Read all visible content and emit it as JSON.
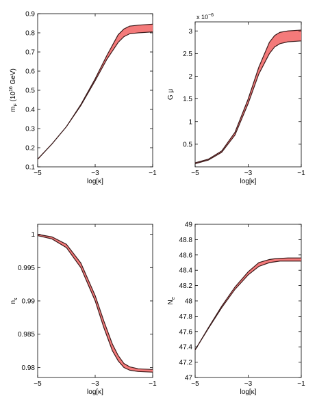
{
  "chart_data": [
    {
      "type": "area",
      "ylabel_main": "m",
      "ylabel_sub": "F",
      "ylabel_rest": " (10",
      "ylabel_sup": "16",
      "ylabel_unit": " GeV)",
      "xlabel": "log[κ]",
      "xlim": [
        -5,
        -1
      ],
      "ylim": [
        0.1,
        0.9
      ],
      "xticks": [
        -5,
        -3,
        -1
      ],
      "xtick_labels": [
        "−5",
        "−3",
        "−1"
      ],
      "yticks": [
        0.1,
        0.2,
        0.3,
        0.4,
        0.5,
        0.6,
        0.7,
        0.8,
        0.9
      ],
      "ytick_labels": [
        "0.1",
        "0.2",
        "0.3",
        "0.4",
        "0.5",
        "0.6",
        "0.7",
        "0.8",
        "0.9"
      ],
      "exponent_label": "",
      "series": [
        {
          "x": [
            -5,
            -4.5,
            -4,
            -3.5,
            -3,
            -2.6,
            -2.2,
            -2,
            -1.8,
            -1.5,
            -1
          ],
          "lower": [
            0.14,
            0.22,
            0.31,
            0.42,
            0.55,
            0.66,
            0.75,
            0.78,
            0.795,
            0.8,
            0.805
          ],
          "upper": [
            0.14,
            0.22,
            0.31,
            0.425,
            0.56,
            0.68,
            0.79,
            0.82,
            0.835,
            0.84,
            0.845
          ]
        }
      ]
    },
    {
      "type": "area",
      "ylabel_main": "G μ",
      "ylabel_sub": "",
      "ylabel_rest": "",
      "ylabel_sup": "",
      "ylabel_unit": "",
      "xlabel": "log[κ]",
      "xlim": [
        -5,
        -1
      ],
      "ylim": [
        0,
        3.2
      ],
      "xticks": [
        -5,
        -3,
        -1
      ],
      "xtick_labels": [
        "−5",
        "−3",
        "−1"
      ],
      "yticks": [
        0.5,
        1,
        1.5,
        2,
        2.5,
        3
      ],
      "ytick_labels": [
        "0.5",
        "1",
        "1.5",
        "2",
        "2.5",
        "3"
      ],
      "exponent_label": "x 10",
      "exponent_sup": "−6",
      "series": [
        {
          "x": [
            -5,
            -4.5,
            -4,
            -3.5,
            -3,
            -2.6,
            -2.2,
            -2,
            -1.8,
            -1.5,
            -1
          ],
          "lower": [
            0.07,
            0.15,
            0.32,
            0.7,
            1.4,
            2.05,
            2.5,
            2.65,
            2.72,
            2.76,
            2.78
          ],
          "upper": [
            0.09,
            0.17,
            0.35,
            0.76,
            1.5,
            2.2,
            2.75,
            2.9,
            2.97,
            3.0,
            3.02
          ]
        }
      ]
    },
    {
      "type": "area",
      "ylabel_main": "n",
      "ylabel_sub": "s",
      "ylabel_rest": "",
      "ylabel_sup": "",
      "ylabel_unit": "",
      "xlabel": "log[κ]",
      "xlim": [
        -5,
        -1
      ],
      "ylim": [
        0.9785,
        1.0015
      ],
      "xticks": [
        -5,
        -3,
        -1
      ],
      "xtick_labels": [
        "−5",
        "−3",
        "−1"
      ],
      "yticks": [
        0.98,
        0.985,
        0.99,
        0.995,
        1
      ],
      "ytick_labels": [
        "0.98",
        "0.985",
        "0.99",
        "0.995",
        "1"
      ],
      "exponent_label": "",
      "series": [
        {
          "x": [
            -5,
            -4.5,
            -4,
            -3.5,
            -3,
            -2.7,
            -2.4,
            -2.2,
            -2,
            -1.8,
            -1.5,
            -1
          ],
          "lower": [
            0.9998,
            0.9993,
            0.998,
            0.995,
            0.99,
            0.986,
            0.9825,
            0.981,
            0.98,
            0.9796,
            0.9794,
            0.9793
          ],
          "upper": [
            1.0,
            0.9996,
            0.9985,
            0.9957,
            0.9908,
            0.987,
            0.9835,
            0.9818,
            0.9806,
            0.9801,
            0.9798,
            0.9797
          ]
        }
      ]
    },
    {
      "type": "area",
      "ylabel_main": "N",
      "ylabel_sub": "e",
      "ylabel_rest": "",
      "ylabel_sup": "",
      "ylabel_unit": "",
      "xlabel": "log[κ]",
      "xlim": [
        -5,
        -1
      ],
      "ylim": [
        47,
        49
      ],
      "xticks": [
        -5,
        -3,
        -1
      ],
      "xtick_labels": [
        "−5",
        "−3",
        "−1"
      ],
      "yticks": [
        47,
        47.2,
        47.4,
        47.6,
        47.8,
        48,
        48.2,
        48.4,
        48.6,
        48.8,
        49
      ],
      "ytick_labels": [
        "47",
        "47.2",
        "47.4",
        "47.6",
        "47.8",
        "48",
        "48.2",
        "48.4",
        "48.6",
        "48.8",
        "49"
      ],
      "exponent_label": "",
      "series": [
        {
          "x": [
            -5,
            -4.5,
            -4,
            -3.5,
            -3,
            -2.6,
            -2.2,
            -2,
            -1.8,
            -1.5,
            -1
          ],
          "lower": [
            47.36,
            47.64,
            47.91,
            48.15,
            48.34,
            48.45,
            48.5,
            48.51,
            48.52,
            48.52,
            48.52
          ],
          "upper": [
            47.36,
            47.65,
            47.93,
            48.18,
            48.38,
            48.5,
            48.54,
            48.55,
            48.555,
            48.56,
            48.56
          ]
        }
      ]
    }
  ],
  "colors": {
    "band_fill": "#f47a7a",
    "band_edge": "#3a1a1a",
    "axis": "#000000"
  }
}
